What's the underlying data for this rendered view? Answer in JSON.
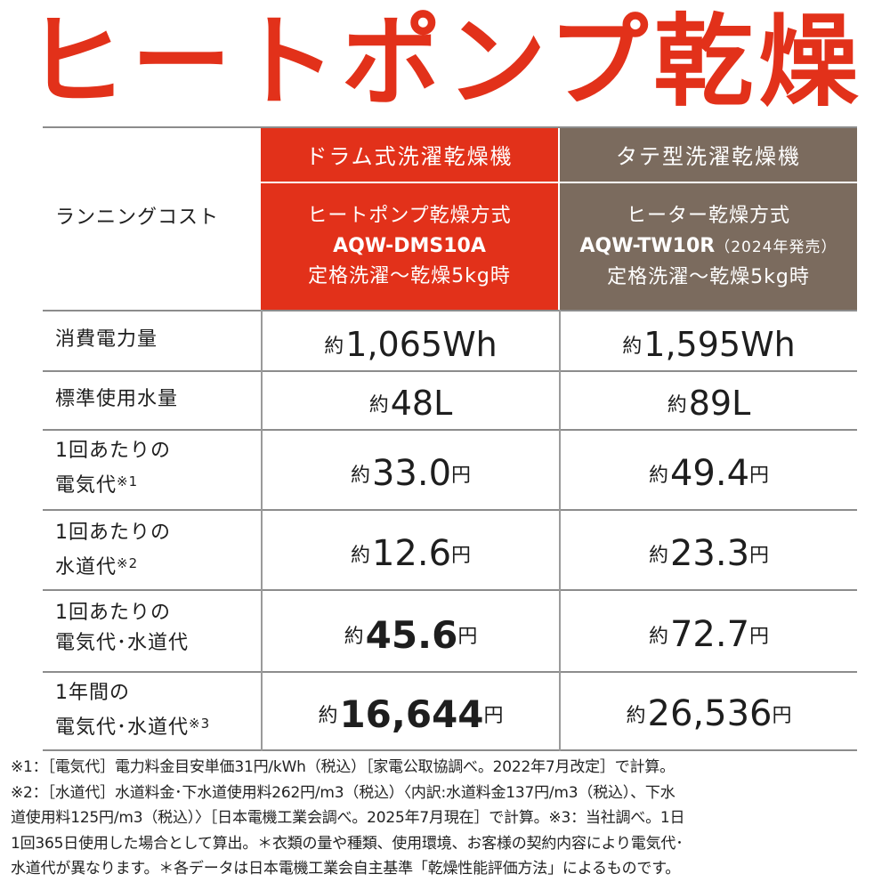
{
  "title": "ヒートポンプ乾燥",
  "header": {
    "row_label": "ランニングコスト",
    "drum": {
      "category": "ドラム式洗濯乾燥機",
      "method": "ヒートポンプ乾燥方式",
      "model": "AQW-DMS10A",
      "condition": "定格洗濯～乾燥5kg時"
    },
    "tate": {
      "category": "タテ型洗濯乾燥機",
      "method": "ヒーター乾燥方式",
      "model": "AQW-TW10R",
      "model_note": "（2024年発売）",
      "condition": "定格洗濯～乾燥5kg時"
    }
  },
  "rows": [
    {
      "label_1": "消費電力量",
      "label_2": "",
      "note": "",
      "drum": {
        "prefix": "約",
        "value": "1,065",
        "unit": "Wh"
      },
      "tate": {
        "prefix": "約",
        "value": "1,595",
        "unit": "Wh"
      }
    },
    {
      "label_1": "標準使用水量",
      "label_2": "",
      "note": "",
      "drum": {
        "prefix": "約",
        "value": "48",
        "unit": "L"
      },
      "tate": {
        "prefix": "約",
        "value": "89",
        "unit": "L"
      }
    },
    {
      "label_1": "1回あたりの",
      "label_2": "電気代",
      "note": "※1",
      "drum": {
        "prefix": "約",
        "value": "33.0",
        "unit": "円"
      },
      "tate": {
        "prefix": "約",
        "value": "49.4",
        "unit": "円"
      }
    },
    {
      "label_1": "1回あたりの",
      "label_2": "水道代",
      "note": "※2",
      "drum": {
        "prefix": "約",
        "value": "12.6",
        "unit": "円"
      },
      "tate": {
        "prefix": "約",
        "value": "23.3",
        "unit": "円"
      }
    },
    {
      "label_1": "1回あたりの",
      "label_2": "電気代･水道代",
      "note": "",
      "drum": {
        "prefix": "約",
        "value": "45.6",
        "unit": "円"
      },
      "tate": {
        "prefix": "約",
        "value": "72.7",
        "unit": "円"
      }
    },
    {
      "label_1": "1年間の",
      "label_2": "電気代･水道代",
      "note": "※3",
      "drum": {
        "prefix": "約",
        "value": "16,644",
        "unit": "円"
      },
      "tate": {
        "prefix": "約",
        "value": "26,536",
        "unit": "円"
      }
    }
  ],
  "footnotes": [
    "※1：［電気代］電力料金目安単価31円/kWh（税込）［家電公取協調べ。2022年7月改定］で計算。",
    "※2：［水道代］水道料金･下水道使用料262円/m3（税込）〈内訳:水道料金137円/m3（税込）、下水",
    "道使用料125円/m3（税込）〉［日本電機工業会調べ。2025年7月現在］で計算。※3：当社調べ。1日",
    "1回365日使用した場合として算出。＊衣類の量や種類、使用環境、お客様の契約内容により電気代･",
    "水道代が異なります。＊各データは日本電機工業会自主基準「乾燥性能評価方法」によるものです。"
  ],
  "colors": {
    "accent_red": "#e2311a",
    "accent_brown": "#7b6b5e"
  }
}
